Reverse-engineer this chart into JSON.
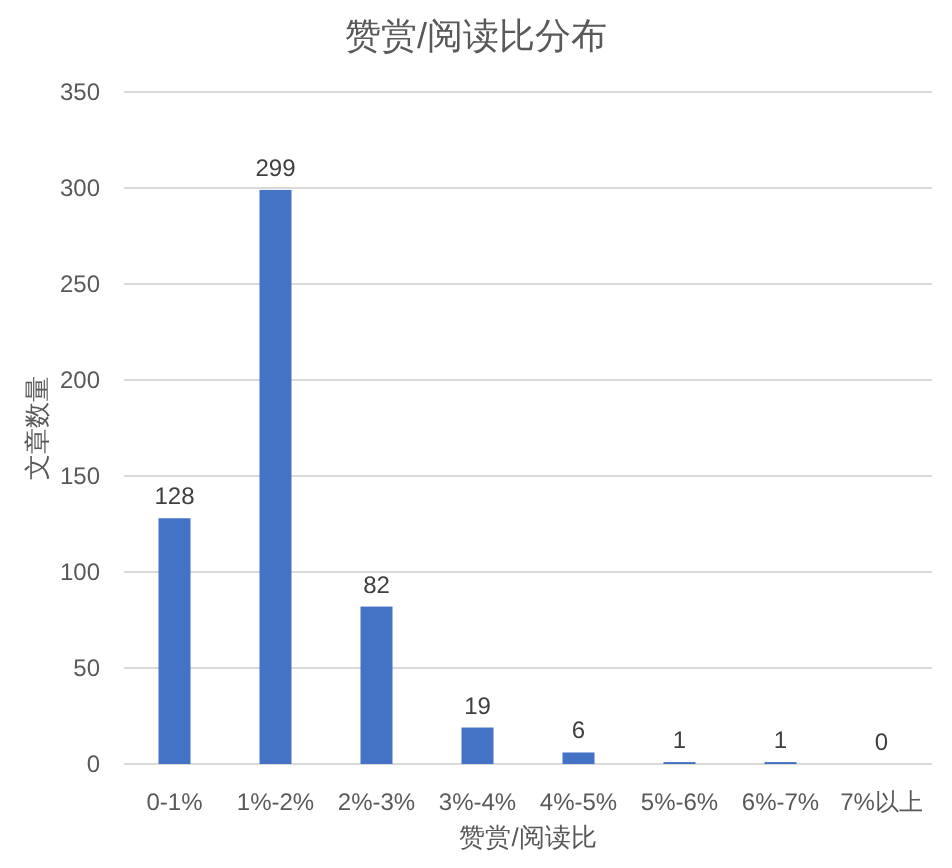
{
  "chart_data": {
    "type": "bar",
    "title": "赞赏/阅读比分布",
    "xlabel": "赞赏/阅读比",
    "ylabel": "文章数量",
    "categories": [
      "0-1%",
      "1%-2%",
      "2%-3%",
      "3%-4%",
      "4%-5%",
      "5%-6%",
      "6%-7%",
      "7%以上"
    ],
    "values": [
      128,
      299,
      82,
      19,
      6,
      1,
      1,
      0
    ],
    "color": "#4472c4",
    "ylim": [
      0,
      350
    ],
    "yticks": [
      0,
      50,
      100,
      150,
      200,
      250,
      300,
      350
    ],
    "grid": "y",
    "data_labels": true
  }
}
